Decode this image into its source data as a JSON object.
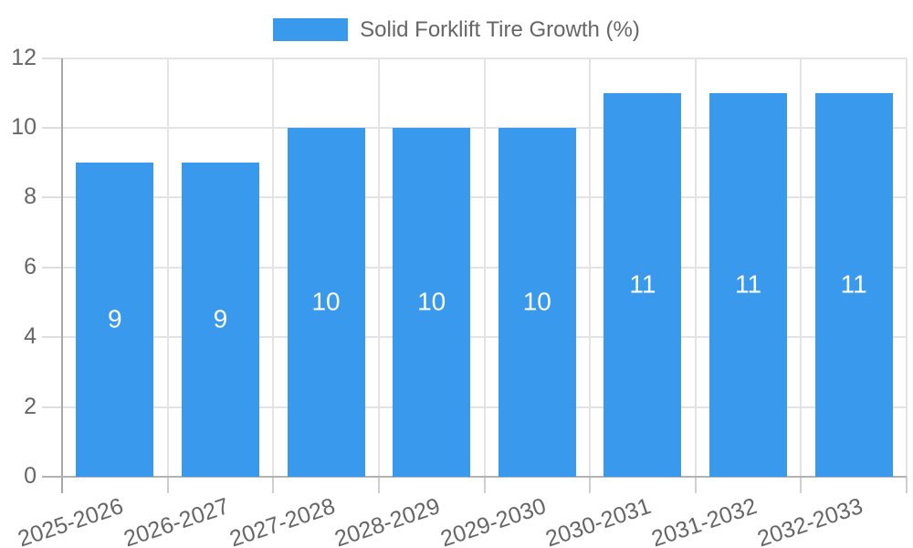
{
  "legend": {
    "label": "Solid Forklift Tire Growth (%)"
  },
  "chart_data": {
    "type": "bar",
    "title": "Solid Forklift Tire Growth (%)",
    "categories": [
      "2025-2026",
      "2026-2027",
      "2027-2028",
      "2028-2029",
      "2029-2030",
      "2030-2031",
      "2031-2032",
      "2032-2033"
    ],
    "values": [
      9,
      9,
      10,
      10,
      10,
      11,
      11,
      11
    ],
    "value_labels": [
      "9",
      "9",
      "10",
      "10",
      "10",
      "11",
      "11",
      "11"
    ],
    "xlabel": "",
    "ylabel": "",
    "ylim": [
      0,
      12
    ],
    "yticks": [
      0,
      2,
      4,
      6,
      8,
      10,
      12
    ],
    "grid": true,
    "legend_position": "top",
    "colors": {
      "bar": "#3999ed",
      "value_label": "#ffffff",
      "tick_text": "#666666",
      "gridline": "#e3e3e3",
      "axis_line": "#a8a8a8"
    }
  }
}
